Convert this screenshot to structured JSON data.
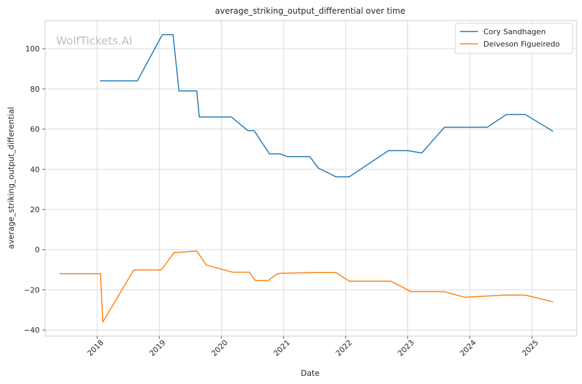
{
  "watermark": "WolfTickets.AI",
  "chart_data": {
    "type": "line",
    "title": "average_striking_output_differential over time",
    "xlabel": "Date",
    "ylabel": "average_striking_output_differential",
    "ylim": [
      -43,
      114
    ],
    "yticks": [
      -40,
      -20,
      0,
      20,
      40,
      60,
      80,
      100
    ],
    "xlim": [
      "2017-03-01",
      "2025-09-20"
    ],
    "xticks": [
      "2018",
      "2019",
      "2020",
      "2021",
      "2022",
      "2023",
      "2024",
      "2025"
    ],
    "grid": true,
    "legend_position": "top-right",
    "series": [
      {
        "name": "Cory Sandhagen",
        "color": "#1f77b4",
        "x": [
          "2018-01-20",
          "2018-08-25",
          "2019-01-19",
          "2019-03-23",
          "2019-04-27",
          "2019-08-10",
          "2019-08-24",
          "2020-02-29",
          "2020-06-06",
          "2020-07-12",
          "2020-10-10",
          "2020-12-12",
          "2021-01-23",
          "2021-06-05",
          "2021-07-24",
          "2021-11-06",
          "2022-01-22",
          "2022-09-10",
          "2022-12-31",
          "2023-03-25",
          "2023-08-05",
          "2024-04-13",
          "2024-08-03",
          "2024-11-23",
          "2025-05-03"
        ],
        "values": [
          84,
          84,
          107,
          107,
          79,
          79,
          66,
          66,
          59.2,
          59.2,
          47.7,
          47.7,
          46.3,
          46.3,
          40.6,
          36.2,
          36.2,
          49.3,
          49.3,
          48.1,
          60.9,
          60.9,
          67.2,
          67.2,
          59
        ]
      },
      {
        "name": "Deiveson Figueiredo",
        "color": "#ff7f0e",
        "x": [
          "2017-05-27",
          "2018-01-20",
          "2018-02-03",
          "2018-08-04",
          "2019-01-12",
          "2019-03-30",
          "2019-04-27",
          "2019-08-10",
          "2019-10-05",
          "2020-03-07",
          "2020-06-13",
          "2020-07-19",
          "2020-10-03",
          "2020-11-21",
          "2020-12-12",
          "2021-01-16",
          "2021-06-12",
          "2021-11-06",
          "2022-01-22",
          "2022-09-24",
          "2023-01-21",
          "2023-08-05",
          "2023-12-02",
          "2024-07-20",
          "2024-11-23",
          "2025-05-03"
        ],
        "values": [
          -11.9,
          -11.9,
          -36,
          -10.1,
          -10.1,
          -1.4,
          -1.3,
          -0.7,
          -7.7,
          -11.2,
          -11.2,
          -15.3,
          -15.3,
          -12.2,
          -11.7,
          -11.7,
          -11.4,
          -11.4,
          -15.7,
          -15.7,
          -20.9,
          -20.9,
          -23.7,
          -22.6,
          -22.6,
          -25.9
        ]
      }
    ]
  }
}
